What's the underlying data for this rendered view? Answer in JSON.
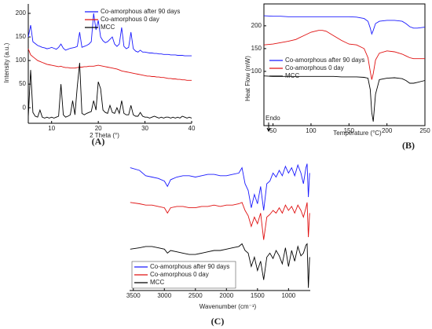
{
  "chart_data": [
    {
      "type": "line",
      "panel_label": "(A)",
      "xlabel": "2 Theta (°)",
      "ylabel": "Intensity (a.u.)",
      "xlim": [
        5,
        40
      ],
      "ylim": [
        -33,
        220
      ],
      "xticks": [
        10,
        20,
        30,
        40
      ],
      "yticks": [
        0,
        50,
        100,
        150,
        200
      ],
      "x": [
        5,
        5.5,
        6,
        6.5,
        7,
        7.5,
        8,
        8.5,
        9,
        9.5,
        10,
        10.5,
        11,
        11.5,
        12,
        12.5,
        13,
        13.5,
        14,
        14.5,
        15,
        15.5,
        16,
        16.5,
        17,
        17.5,
        18,
        18.5,
        19,
        19.5,
        20,
        20.5,
        21,
        21.5,
        22,
        22.5,
        23,
        23.5,
        24,
        24.5,
        25,
        25.5,
        26,
        26.5,
        27,
        27.5,
        28,
        28.5,
        29,
        29.5,
        30,
        30.5,
        31,
        31.5,
        32,
        32.5,
        33,
        33.5,
        34,
        34.5,
        35,
        35.5,
        36,
        36.5,
        37,
        37.5,
        38,
        38.5,
        39,
        39.5,
        40
      ],
      "series": [
        {
          "name": "Co-amorphous after 90 days",
          "color": "#1a1aff",
          "values": [
            150,
            175,
            140,
            136,
            132,
            130,
            128,
            127,
            125,
            126,
            128,
            126,
            124,
            128,
            135,
            126,
            122,
            124,
            126,
            127,
            128,
            130,
            160,
            128,
            130,
            132,
            135,
            140,
            200,
            165,
            185,
            150,
            142,
            138,
            140,
            145,
            150,
            135,
            130,
            135,
            170,
            130,
            125,
            128,
            160,
            125,
            120,
            118,
            122,
            118,
            118,
            117,
            116,
            116,
            115,
            115,
            114,
            114,
            113,
            113,
            113,
            112,
            112,
            112,
            111,
            111,
            111,
            110,
            110,
            110,
            110
          ]
        },
        {
          "name": "Co-amorphous 0 day",
          "color": "#e01010",
          "values": [
            125,
            112,
            108,
            104,
            100,
            98,
            96,
            94,
            92,
            91,
            90,
            89,
            88,
            87,
            88,
            86,
            85,
            85,
            84,
            84,
            84,
            85,
            86,
            86,
            87,
            87,
            88,
            88,
            88,
            89,
            90,
            89,
            88,
            87,
            86,
            85,
            84,
            83,
            82,
            80,
            78,
            77,
            76,
            75,
            74,
            73,
            72,
            71,
            70,
            69,
            68,
            67,
            67,
            66,
            66,
            65,
            65,
            64,
            64,
            63,
            62,
            62,
            61,
            61,
            60,
            60,
            59,
            59,
            58,
            58,
            58
          ]
        },
        {
          "name": "MCC",
          "color": "#000000",
          "values": [
            -20,
            80,
            -10,
            -18,
            -20,
            -5,
            -20,
            -22,
            -20,
            -22,
            -20,
            -22,
            -20,
            -18,
            50,
            -15,
            -20,
            -18,
            -15,
            15,
            -15,
            45,
            95,
            -12,
            -15,
            -12,
            -10,
            -8,
            15,
            -5,
            55,
            40,
            -5,
            -10,
            -12,
            5,
            -10,
            -12,
            0,
            -12,
            15,
            -12,
            -15,
            -15,
            5,
            -15,
            -18,
            -18,
            -10,
            -18,
            -20,
            -20,
            -22,
            -20,
            -18,
            -20,
            -22,
            -20,
            -22,
            -20,
            -20,
            -22,
            -20,
            -22,
            -20,
            -22,
            -18,
            -20,
            -22,
            -20,
            -22
          ]
        }
      ]
    },
    {
      "type": "line",
      "panel_label": "(B)",
      "xlabel": "Temperature (°C)",
      "ylabel": "Heat Flow (mW)",
      "annotation": "Endo",
      "xlim": [
        38,
        250
      ],
      "ylim": [
        -19,
        248
      ],
      "xticks": [
        50,
        100,
        150,
        200,
        250
      ],
      "yticks": [
        100,
        150,
        200
      ],
      "x": [
        38,
        50,
        60,
        70,
        80,
        90,
        100,
        110,
        115,
        120,
        130,
        140,
        150,
        160,
        170,
        175,
        178,
        180,
        182,
        185,
        190,
        200,
        210,
        220,
        225,
        230,
        235,
        240,
        250
      ],
      "series": [
        {
          "name": "Co-amorphous after 90 days",
          "color": "#1a1aff",
          "values": [
            222,
            221,
            221,
            220,
            220,
            220,
            220,
            220,
            220,
            220,
            220,
            220,
            220,
            219,
            216,
            210,
            195,
            182,
            190,
            205,
            210,
            212,
            212,
            210,
            205,
            198,
            195,
            195,
            197
          ]
        },
        {
          "name": "Co-amorphous 0 day",
          "color": "#e01010",
          "values": [
            158,
            160,
            163,
            166,
            170,
            178,
            186,
            190,
            190,
            188,
            178,
            168,
            160,
            158,
            150,
            130,
            100,
            82,
            95,
            125,
            140,
            145,
            143,
            138,
            134,
            130,
            128,
            128,
            128
          ]
        },
        {
          "name": "MCC",
          "color": "#000000",
          "values": [
            90,
            89,
            89,
            89,
            89,
            89,
            89,
            89,
            89,
            89,
            89,
            88,
            88,
            88,
            87,
            85,
            60,
            10,
            -10,
            50,
            82,
            85,
            86,
            84,
            80,
            74,
            74,
            76,
            80
          ]
        }
      ]
    },
    {
      "type": "line",
      "panel_label": "(C)",
      "xlabel": "Wavenumber (cm⁻¹)",
      "xlim": [
        3560,
        650
      ],
      "ylim": [
        0,
        100
      ],
      "xticks": [
        3500,
        3000,
        2500,
        2000,
        1500,
        1000
      ],
      "x": [
        3550,
        3400,
        3300,
        3200,
        3100,
        3000,
        2950,
        2900,
        2800,
        2700,
        2600,
        2500,
        2400,
        2300,
        2200,
        2100,
        2000,
        1900,
        1800,
        1750,
        1700,
        1650,
        1600,
        1550,
        1500,
        1450,
        1400,
        1350,
        1300,
        1250,
        1200,
        1150,
        1100,
        1050,
        1000,
        950,
        900,
        850,
        800,
        760,
        720,
        700,
        680,
        660
      ],
      "series": [
        {
          "name": "Co-amorphous after 90 days",
          "color": "#1a1aff",
          "values": [
            92,
            90,
            86,
            85,
            84,
            82,
            78,
            83,
            85,
            86,
            86,
            85,
            86,
            87,
            87,
            86,
            86,
            87,
            88,
            92,
            80,
            75,
            62,
            72,
            65,
            78,
            60,
            80,
            82,
            88,
            85,
            90,
            86,
            93,
            88,
            92,
            86,
            94,
            88,
            80,
            92,
            95,
            70,
            88
          ]
        },
        {
          "name": "Co-amorphous 0 day",
          "color": "#e01010",
          "values": [
            66,
            65,
            64,
            64,
            63,
            62,
            58,
            62,
            63,
            63,
            62,
            62,
            63,
            63,
            64,
            63,
            64,
            64,
            65,
            66,
            60,
            56,
            48,
            55,
            50,
            58,
            38,
            55,
            57,
            60,
            58,
            62,
            58,
            64,
            60,
            63,
            58,
            64,
            60,
            55,
            62,
            66,
            40,
            58
          ]
        },
        {
          "name": "MCC",
          "color": "#000000",
          "values": [
            31,
            32,
            33,
            33,
            32,
            31,
            28,
            30,
            29,
            28,
            27,
            27,
            28,
            29,
            30,
            30,
            31,
            32,
            33,
            35,
            30,
            28,
            18,
            25,
            15,
            22,
            8,
            25,
            28,
            24,
            30,
            26,
            20,
            32,
            18,
            30,
            22,
            33,
            26,
            28,
            34,
            35,
            2,
            25
          ]
        }
      ]
    }
  ]
}
